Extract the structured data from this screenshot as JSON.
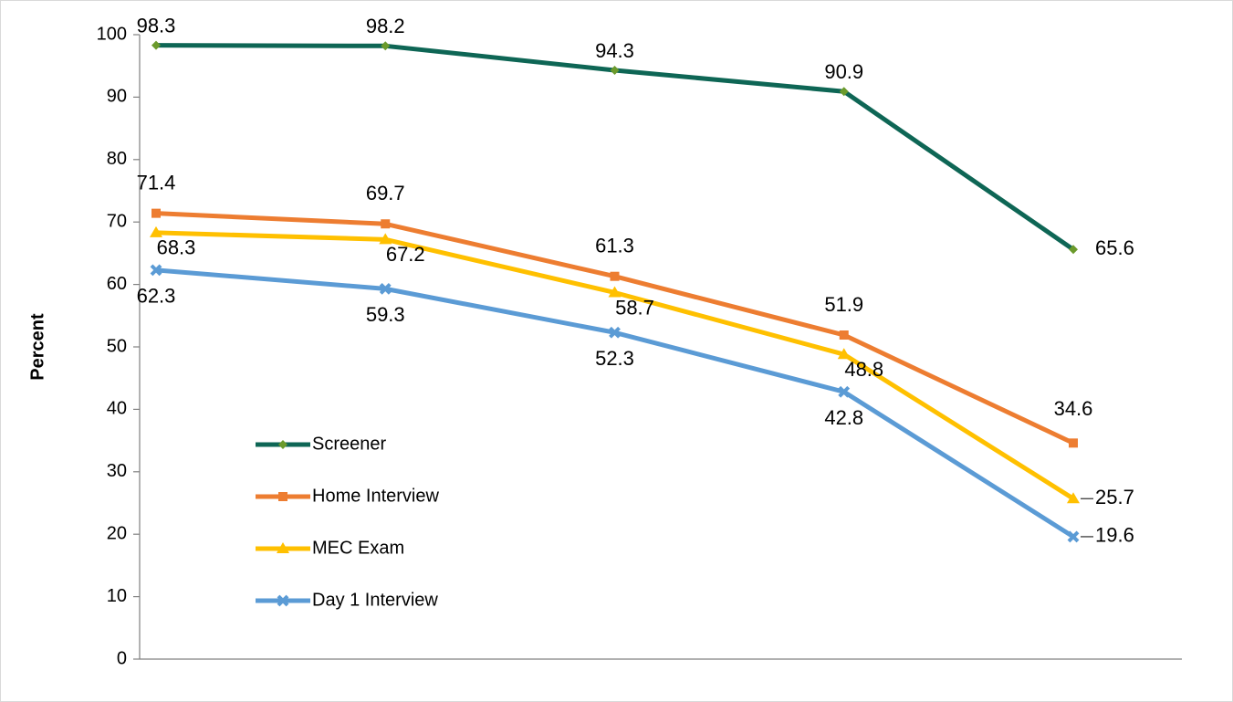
{
  "chart_data": {
    "type": "line",
    "y_label": "Percent",
    "categories": [
      null,
      null,
      null,
      null,
      null
    ],
    "series": [
      {
        "name": "Screener",
        "color": "#0e6655",
        "marker": "diamond",
        "marker_color": "#6b9a2c",
        "values": [
          98.3,
          98.2,
          94.3,
          90.9,
          65.6
        ]
      },
      {
        "name": "Home Interview",
        "color": "#ed7d31",
        "marker": "square",
        "marker_color": "#ed7d31",
        "values": [
          71.4,
          69.7,
          61.3,
          51.9,
          34.6
        ]
      },
      {
        "name": "MEC Exam",
        "color": "#ffc000",
        "marker": "triangle",
        "marker_color": "#ffc000",
        "values": [
          68.3,
          67.2,
          58.7,
          48.8,
          25.7
        ]
      },
      {
        "name": "Day 1 Interview",
        "color": "#5b9bd5",
        "marker": "x",
        "marker_color": "#5b9bd5",
        "values": [
          62.3,
          59.3,
          52.3,
          42.8,
          19.6
        ]
      }
    ],
    "ylim": [
      0,
      100
    ],
    "yticks": [
      0,
      10,
      20,
      30,
      40,
      50,
      60,
      70,
      80,
      90,
      100
    ],
    "grid": false,
    "legend": "lower-left"
  }
}
